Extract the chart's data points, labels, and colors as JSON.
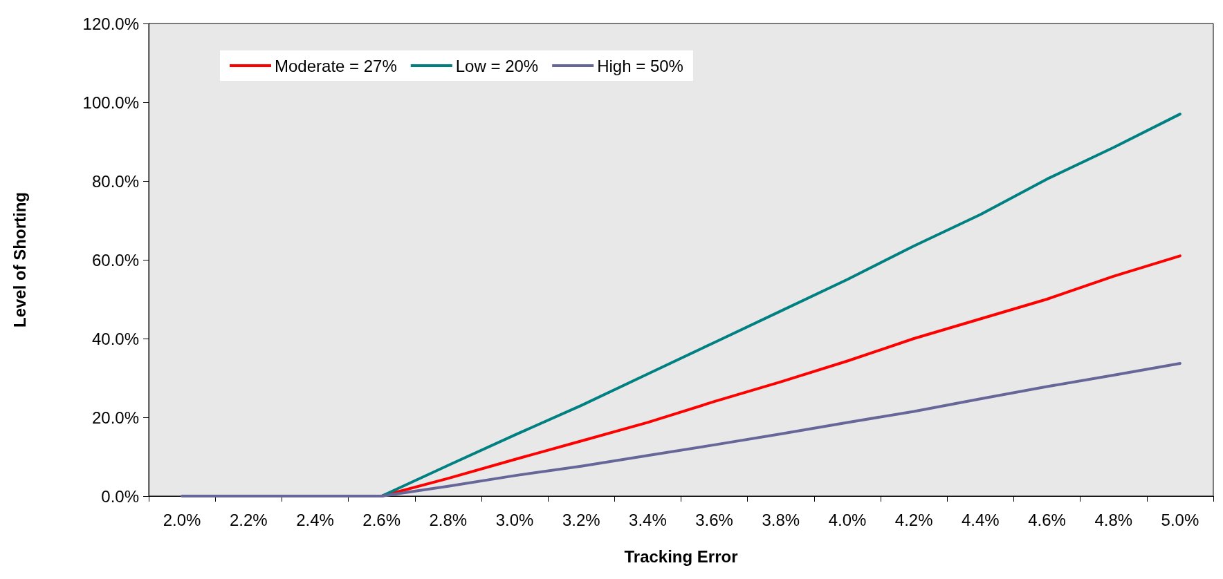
{
  "chart_data": {
    "type": "line",
    "xlabel": "Tracking Error",
    "ylabel": "Level of Shorting",
    "categories": [
      "2.0%",
      "2.2%",
      "2.4%",
      "2.6%",
      "2.8%",
      "3.0%",
      "3.2%",
      "3.4%",
      "3.6%",
      "3.8%",
      "4.0%",
      "4.2%",
      "4.4%",
      "4.6%",
      "4.8%",
      "5.0%"
    ],
    "series": [
      {
        "name": "Moderate = 27%",
        "color": "#ff0000",
        "values": [
          null,
          null,
          0,
          0,
          4.5,
          9.3,
          14,
          18.7,
          24,
          29,
          34.3,
          40,
          45,
          50,
          55.8,
          61
        ]
      },
      {
        "name": "Low = 20%",
        "color": "#008080",
        "values": [
          null,
          null,
          0,
          0,
          7.8,
          15.5,
          23,
          31,
          39,
          47,
          55,
          63.5,
          71.5,
          80.5,
          88.5,
          97
        ]
      },
      {
        "name": "High = 50%",
        "color": "#666699",
        "values": [
          0,
          0,
          0,
          0,
          2.5,
          5.2,
          7.6,
          10.3,
          13,
          15.8,
          18.7,
          21.5,
          24.7,
          27.8,
          30.7,
          33.7
        ]
      }
    ],
    "ylim": [
      0,
      120
    ],
    "yticks": [
      {
        "value": 0,
        "label": "0.0%"
      },
      {
        "value": 20,
        "label": "20.0%"
      },
      {
        "value": 40,
        "label": "40.0%"
      },
      {
        "value": 60,
        "label": "60.0%"
      },
      {
        "value": 80,
        "label": "80.0%"
      },
      {
        "value": 100,
        "label": "100.0%"
      },
      {
        "value": 120,
        "label": "120.0%"
      }
    ],
    "grid": false,
    "legend": "top left",
    "marker": "none",
    "line_style": "solid"
  }
}
